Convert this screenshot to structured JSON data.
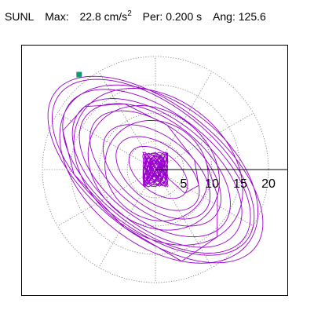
{
  "header": {
    "station": "SUNL",
    "max_label": "Max:",
    "max_value": "22.8",
    "max_unit": "cm/s",
    "max_unit_exp": "2",
    "per_label": "Per:",
    "per_value": "0.200 s",
    "ang_label": "Ang:",
    "ang_value": "125.6"
  },
  "polar": {
    "rings": [
      5,
      10,
      15,
      20
    ],
    "ring_labels": [
      "5",
      "10",
      "15",
      "20"
    ],
    "angle_step_deg": 30
  },
  "colors": {
    "trace": "#9900cc",
    "grid": "#777777",
    "axis": "#000000",
    "marker": "#119977"
  },
  "marker": {
    "shape": "square",
    "x": -13.5,
    "y": 16.8
  }
}
